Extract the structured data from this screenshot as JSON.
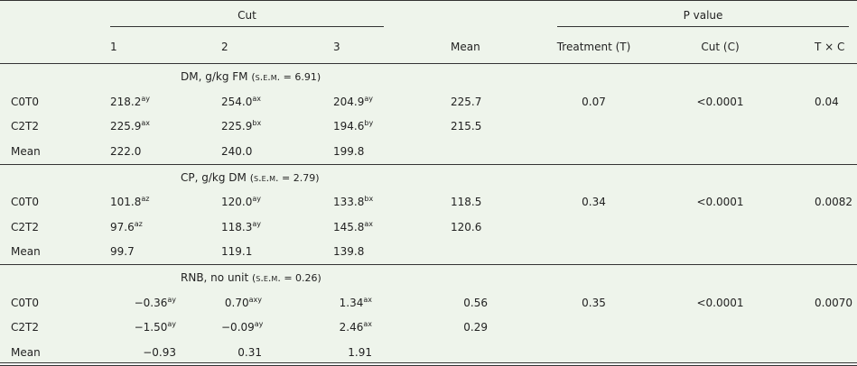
{
  "header": {
    "group_cut": "Cut",
    "group_p": "P value",
    "columns": [
      "1",
      "2",
      "3",
      "Mean",
      "Treatment (T)",
      "Cut (C)",
      "T × C"
    ]
  },
  "sections": [
    {
      "title": "DM, g/kg FM",
      "sem": "(s.e.m. = 6.91)",
      "rows": [
        {
          "label": "C0T0",
          "cells": [
            {
              "v": "218.2",
              "s": "ay"
            },
            {
              "v": "254.0",
              "s": "ax"
            },
            {
              "v": "204.9",
              "s": "ay"
            }
          ],
          "mean": "225.7",
          "p": [
            "0.07",
            "<0.0001",
            "0.04"
          ]
        },
        {
          "label": "C2T2",
          "cells": [
            {
              "v": "225.9",
              "s": "ax"
            },
            {
              "v": "225.9",
              "s": "bx"
            },
            {
              "v": "194.6",
              "s": "by"
            }
          ],
          "mean": "215.5"
        },
        {
          "label": "Mean",
          "cells": [
            {
              "v": "222.0"
            },
            {
              "v": "240.0"
            },
            {
              "v": "199.8"
            }
          ]
        }
      ]
    },
    {
      "title": "CP, g/kg DM",
      "sem": "(s.e.m. = 2.79)",
      "rows": [
        {
          "label": "C0T0",
          "cells": [
            {
              "v": "101.8",
              "s": "az"
            },
            {
              "v": "120.0",
              "s": "ay"
            },
            {
              "v": "133.8",
              "s": "bx"
            }
          ],
          "mean": "118.5",
          "p": [
            "0.34",
            "<0.0001",
            "0.0082"
          ]
        },
        {
          "label": "C2T2",
          "cells": [
            {
              "v": "97.6",
              "s": "az"
            },
            {
              "v": "118.3",
              "s": "ay"
            },
            {
              "v": "145.8",
              "s": "ax"
            }
          ],
          "mean": "120.6"
        },
        {
          "label": "Mean",
          "cells": [
            {
              "v": "99.7"
            },
            {
              "v": "119.1"
            },
            {
              "v": "139.8"
            }
          ]
        }
      ]
    },
    {
      "title": "RNB, no unit",
      "sem": "(s.e.m. = 0.26)",
      "rows": [
        {
          "label": "C0T0",
          "cells": [
            {
              "v": "−0.36",
              "s": "ay"
            },
            {
              "v": "0.70",
              "s": "axy"
            },
            {
              "v": "1.34",
              "s": "ax"
            }
          ],
          "mean": "0.56",
          "p": [
            "0.35",
            "<0.0001",
            "0.0070"
          ]
        },
        {
          "label": "C2T2",
          "cells": [
            {
              "v": "−1.50",
              "s": "ay"
            },
            {
              "v": "−0.09",
              "s": "ay"
            },
            {
              "v": "2.46",
              "s": "ax"
            }
          ],
          "mean": "0.29"
        },
        {
          "label": "Mean",
          "cells": [
            {
              "v": "−0.93"
            },
            {
              "v": "0.31"
            },
            {
              "v": "1.91"
            }
          ]
        }
      ]
    }
  ]
}
